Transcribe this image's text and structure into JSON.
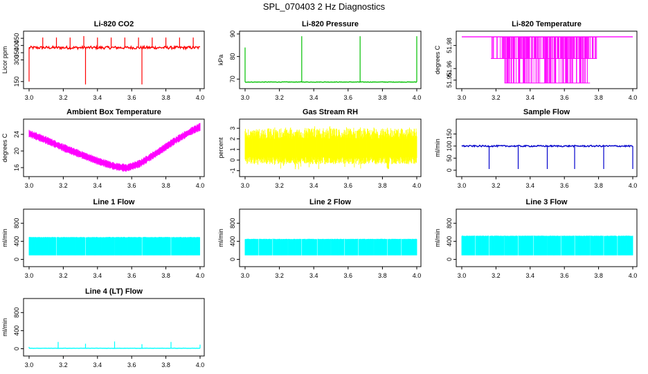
{
  "page": {
    "title": "SPL_070403  2 Hz Diagnostics"
  },
  "chart_data": [
    {
      "type": "line",
      "title": "Li-820 CO2",
      "ylabel": "Licor ppm",
      "xlim": [
        3.0,
        4.0
      ],
      "ylim": [
        120,
        480
      ],
      "xticks": [
        "3.0",
        "3.2",
        "3.4",
        "3.6",
        "3.8",
        "4.0"
      ],
      "yticks": [
        {
          "v": 150,
          "label": "150"
        },
        {
          "v": 300,
          "label": "300"
        },
        {
          "v": 350,
          "label": "350"
        },
        {
          "v": 400,
          "label": "400"
        },
        {
          "v": 450,
          "label": "450"
        }
      ],
      "color": "#ff0000",
      "baseline": 385,
      "noise": 10,
      "marker_at_start": 150,
      "spikes": [
        [
          3.08,
          455
        ],
        [
          3.16,
          455
        ],
        [
          3.24,
          455
        ],
        [
          3.32,
          465
        ],
        [
          3.4,
          455
        ],
        [
          3.48,
          455
        ],
        [
          3.56,
          455
        ],
        [
          3.64,
          455
        ],
        [
          3.72,
          455
        ],
        [
          3.8,
          455
        ],
        [
          3.88,
          455
        ],
        [
          3.96,
          455
        ]
      ],
      "dips": [
        [
          3.0,
          150
        ],
        [
          3.33,
          130
        ],
        [
          3.66,
          130
        ]
      ]
    },
    {
      "type": "line",
      "title": "Li-820 Pressure",
      "ylabel": "kPa",
      "xlim": [
        3.0,
        4.0
      ],
      "ylim": [
        67,
        90
      ],
      "xticks": [
        "3.0",
        "3.2",
        "3.4",
        "3.6",
        "3.8",
        "4.0"
      ],
      "yticks": [
        {
          "v": 70,
          "label": "70"
        },
        {
          "v": 80,
          "label": "80"
        },
        {
          "v": 90,
          "label": "90"
        }
      ],
      "color": "#00c000",
      "baseline": 68.7,
      "noise": 0.1,
      "spikes": [
        [
          3.0,
          84
        ],
        [
          3.33,
          89
        ],
        [
          3.67,
          89
        ],
        [
          4.0,
          89
        ]
      ],
      "dips": []
    },
    {
      "type": "line",
      "title": "Li-820 Temperature",
      "ylabel": "degrees C",
      "xlim": [
        3.0,
        4.0
      ],
      "ylim": [
        51.945,
        51.99
      ],
      "xticks": [
        "3.0",
        "3.2",
        "3.4",
        "3.6",
        "3.8",
        "4.0"
      ],
      "yticks": [
        {
          "v": 51.95,
          "label": "51.95"
        },
        {
          "v": 51.96,
          "label": "51.96"
        },
        {
          "v": 51.98,
          "label": "51.98"
        }
      ],
      "color": "#ff00ff",
      "levels": {
        "top": 51.9875,
        "mid": 51.9687,
        "low": 51.9475
      },
      "bands": [
        [
          3.17,
          3.79,
          "mid"
        ],
        [
          3.25,
          3.75,
          "low"
        ],
        [
          3.45,
          3.55,
          "top"
        ]
      ]
    },
    {
      "type": "area",
      "title": "Ambient Box Temperature",
      "ylabel": "degrees C",
      "xlim": [
        3.0,
        4.0
      ],
      "ylim": [
        14.5,
        27
      ],
      "xticks": [
        "3.0",
        "3.2",
        "3.4",
        "3.6",
        "3.8",
        "4.0"
      ],
      "yticks": [
        {
          "v": 16,
          "label": "16"
        },
        {
          "v": 20,
          "label": "20"
        },
        {
          "v": 24,
          "label": "24"
        }
      ],
      "color": "#ff00ff",
      "points": [
        [
          3.0,
          24.2
        ],
        [
          3.1,
          22.6
        ],
        [
          3.2,
          20.8
        ],
        [
          3.3,
          19.2
        ],
        [
          3.4,
          17.6
        ],
        [
          3.5,
          16.3
        ],
        [
          3.57,
          15.9
        ],
        [
          3.65,
          17.0
        ],
        [
          3.75,
          19.6
        ],
        [
          3.85,
          22.4
        ],
        [
          3.95,
          24.8
        ],
        [
          4.0,
          25.8
        ]
      ],
      "band": 1.6
    },
    {
      "type": "area",
      "title": "Gas Stream RH",
      "ylabel": "percent",
      "xlim": [
        3.0,
        4.0
      ],
      "ylim": [
        -1.3,
        3.6
      ],
      "xticks": [
        "3.0",
        "3.2",
        "3.4",
        "3.6",
        "3.8",
        "4.0"
      ],
      "yticks": [
        {
          "v": -1,
          "label": "-1"
        },
        {
          "v": 0,
          "label": "0"
        },
        {
          "v": 1,
          "label": "1"
        },
        {
          "v": 2,
          "label": "2"
        },
        {
          "v": 3,
          "label": "3"
        }
      ],
      "color": "#ffff00",
      "top": 3.0,
      "bottom": -0.4,
      "core_top": 2.0,
      "core_bottom": 0.3
    },
    {
      "type": "line",
      "title": "Sample Flow",
      "ylabel": "ml/min",
      "xlim": [
        3.0,
        4.0
      ],
      "ylim": [
        -15,
        200
      ],
      "xticks": [
        "3.0",
        "3.2",
        "3.4",
        "3.6",
        "3.8",
        "4.0"
      ],
      "yticks": [
        {
          "v": 0,
          "label": "0"
        },
        {
          "v": 50,
          "label": "50"
        },
        {
          "v": 100,
          "label": "100"
        },
        {
          "v": 150,
          "label": "150"
        }
      ],
      "color": "#0000cc",
      "baseline": 100,
      "noise": 3,
      "dips": [
        [
          3.16,
          5
        ],
        [
          3.33,
          5
        ],
        [
          3.5,
          5
        ],
        [
          3.66,
          5
        ],
        [
          3.83,
          5
        ],
        [
          4.0,
          5
        ]
      ],
      "spikes": []
    },
    {
      "type": "area",
      "title": "Line 1 Flow",
      "ylabel": "ml/min",
      "xlim": [
        3.0,
        4.0
      ],
      "ylim": [
        -100,
        1050
      ],
      "xticks": [
        "3.0",
        "3.2",
        "3.4",
        "3.6",
        "3.8",
        "4.0"
      ],
      "yticks": [
        {
          "v": 0,
          "label": "0"
        },
        {
          "v": 400,
          "label": "400"
        },
        {
          "v": 800,
          "label": "800"
        }
      ],
      "color": "#00ffff",
      "top": 490,
      "bottom": 90,
      "gaps": [
        3.16,
        3.33,
        3.5,
        3.66,
        3.83,
        4.0
      ]
    },
    {
      "type": "area",
      "title": "Line 2 Flow",
      "ylabel": "ml/min",
      "xlim": [
        3.0,
        4.0
      ],
      "ylim": [
        -100,
        1050
      ],
      "xticks": [
        "3.0",
        "3.2",
        "3.4",
        "3.6",
        "3.8",
        "4.0"
      ],
      "yticks": [
        {
          "v": 0,
          "label": "0"
        },
        {
          "v": 400,
          "label": "400"
        },
        {
          "v": 800,
          "label": "800"
        }
      ],
      "color": "#00ffff",
      "top": 450,
      "bottom": 90,
      "gaps": [
        3.08,
        3.16,
        3.25,
        3.33,
        3.42,
        3.5,
        3.58,
        3.66,
        3.75,
        3.83,
        3.91
      ]
    },
    {
      "type": "area",
      "title": "Line 3 Flow",
      "ylabel": "ml/min",
      "xlim": [
        3.0,
        4.0
      ],
      "ylim": [
        -100,
        1050
      ],
      "xticks": [
        "3.0",
        "3.2",
        "3.4",
        "3.6",
        "3.8",
        "4.0"
      ],
      "yticks": [
        {
          "v": 0,
          "label": "0"
        },
        {
          "v": 400,
          "label": "400"
        },
        {
          "v": 800,
          "label": "800"
        }
      ],
      "color": "#00ffff",
      "top": 520,
      "bottom": 90,
      "gaps": [
        3.08,
        3.16,
        3.25,
        3.33,
        3.42,
        3.5,
        3.58,
        3.66,
        3.75,
        3.83,
        3.91
      ]
    },
    {
      "type": "line",
      "title": "Line 4 (LT) Flow",
      "ylabel": "ml/min",
      "xlim": [
        3.0,
        4.0
      ],
      "ylim": [
        -100,
        1050
      ],
      "xticks": [
        "3.0",
        "3.2",
        "3.4",
        "3.6",
        "3.8",
        "4.0"
      ],
      "yticks": [
        {
          "v": 0,
          "label": "0"
        },
        {
          "v": 400,
          "label": "400"
        },
        {
          "v": 800,
          "label": "800"
        }
      ],
      "color": "#00ffff",
      "baseline": 10,
      "noise": 3,
      "spikes": [
        [
          3.0,
          40
        ],
        [
          3.17,
          150
        ],
        [
          3.33,
          110
        ],
        [
          3.5,
          160
        ],
        [
          3.66,
          100
        ],
        [
          3.83,
          150
        ],
        [
          4.0,
          90
        ]
      ],
      "dips": []
    }
  ]
}
